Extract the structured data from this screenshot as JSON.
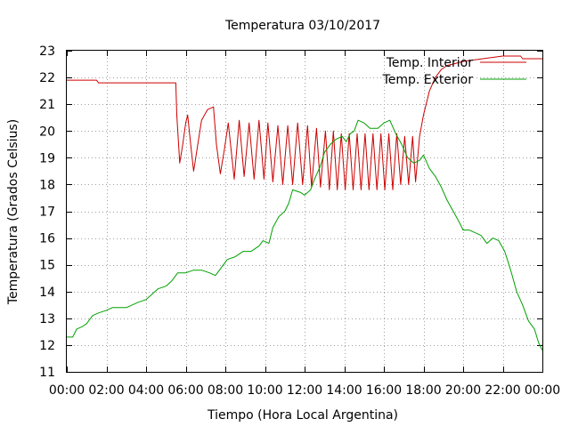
{
  "chart_data": {
    "type": "line",
    "title": "Temperatura 03/10/2017",
    "xlabel": "Tiempo (Hora Local Argentina)",
    "ylabel": "Temperatura (Grados Celsius)",
    "xlim": [
      0,
      24
    ],
    "ylim": [
      11,
      23
    ],
    "x_tick_labels": [
      "00:00",
      "02:00",
      "04:00",
      "06:00",
      "08:00",
      "10:00",
      "12:00",
      "14:00",
      "16:00",
      "18:00",
      "20:00",
      "22:00",
      "00:00"
    ],
    "y_tick_labels": [
      "11",
      "12",
      "13",
      "14",
      "15",
      "16",
      "17",
      "18",
      "19",
      "20",
      "21",
      "22",
      "23"
    ],
    "grid": true,
    "legend_position": "top-right",
    "series": [
      {
        "name": "Temp. Interior",
        "color": "#cc0000",
        "points": [
          [
            0,
            21.9
          ],
          [
            1.5,
            21.9
          ],
          [
            1.6,
            21.8
          ],
          [
            5.5,
            21.8
          ],
          [
            5.55,
            20.6
          ],
          [
            5.7,
            18.8
          ],
          [
            5.85,
            19.5
          ],
          [
            6.0,
            20.3
          ],
          [
            6.1,
            20.6
          ],
          [
            6.25,
            19.5
          ],
          [
            6.4,
            18.5
          ],
          [
            6.55,
            19.2
          ],
          [
            6.8,
            20.4
          ],
          [
            7.1,
            20.8
          ],
          [
            7.4,
            20.9
          ],
          [
            7.55,
            19.5
          ],
          [
            7.75,
            18.4
          ],
          [
            7.95,
            19.3
          ],
          [
            8.15,
            20.3
          ],
          [
            8.45,
            18.2
          ],
          [
            8.7,
            20.4
          ],
          [
            8.95,
            18.3
          ],
          [
            9.2,
            20.3
          ],
          [
            9.45,
            18.2
          ],
          [
            9.7,
            20.4
          ],
          [
            9.95,
            18.2
          ],
          [
            10.15,
            20.3
          ],
          [
            10.4,
            18.1
          ],
          [
            10.65,
            20.2
          ],
          [
            10.9,
            18.0
          ],
          [
            11.15,
            20.2
          ],
          [
            11.4,
            18.0
          ],
          [
            11.65,
            20.3
          ],
          [
            11.9,
            18.0
          ],
          [
            12.15,
            20.2
          ],
          [
            12.35,
            17.9
          ],
          [
            12.6,
            20.1
          ],
          [
            12.8,
            17.9
          ],
          [
            13.05,
            20.0
          ],
          [
            13.25,
            17.8
          ],
          [
            13.45,
            20.0
          ],
          [
            13.65,
            17.8
          ],
          [
            13.85,
            19.9
          ],
          [
            14.05,
            17.8
          ],
          [
            14.25,
            19.9
          ],
          [
            14.45,
            17.8
          ],
          [
            14.65,
            19.9
          ],
          [
            14.85,
            17.8
          ],
          [
            15.05,
            19.9
          ],
          [
            15.25,
            17.8
          ],
          [
            15.45,
            19.9
          ],
          [
            15.65,
            17.8
          ],
          [
            15.85,
            19.9
          ],
          [
            16.05,
            17.8
          ],
          [
            16.25,
            19.9
          ],
          [
            16.45,
            17.8
          ],
          [
            16.65,
            19.9
          ],
          [
            16.85,
            18.0
          ],
          [
            17.05,
            19.8
          ],
          [
            17.25,
            18.0
          ],
          [
            17.45,
            19.8
          ],
          [
            17.6,
            18.1
          ],
          [
            17.8,
            19.8
          ],
          [
            18.0,
            20.6
          ],
          [
            18.3,
            21.5
          ],
          [
            18.6,
            22.0
          ],
          [
            18.9,
            22.3
          ],
          [
            19.2,
            22.45
          ],
          [
            19.5,
            22.5
          ],
          [
            20.0,
            22.6
          ],
          [
            20.5,
            22.65
          ],
          [
            21.0,
            22.7
          ],
          [
            21.5,
            22.75
          ],
          [
            22.0,
            22.8
          ],
          [
            22.9,
            22.8
          ],
          [
            23.0,
            22.7
          ],
          [
            24.0,
            22.7
          ]
        ]
      },
      {
        "name": "Temp. Exterior",
        "color": "#00a000",
        "points": [
          [
            0,
            12.3
          ],
          [
            0.3,
            12.3
          ],
          [
            0.5,
            12.6
          ],
          [
            0.8,
            12.7
          ],
          [
            1.0,
            12.8
          ],
          [
            1.3,
            13.1
          ],
          [
            1.6,
            13.2
          ],
          [
            2.0,
            13.3
          ],
          [
            2.3,
            13.4
          ],
          [
            2.7,
            13.4
          ],
          [
            3.0,
            13.4
          ],
          [
            3.3,
            13.5
          ],
          [
            3.6,
            13.6
          ],
          [
            4.0,
            13.7
          ],
          [
            4.3,
            13.9
          ],
          [
            4.6,
            14.1
          ],
          [
            5.0,
            14.2
          ],
          [
            5.3,
            14.4
          ],
          [
            5.6,
            14.7
          ],
          [
            6.0,
            14.7
          ],
          [
            6.4,
            14.8
          ],
          [
            6.8,
            14.8
          ],
          [
            7.2,
            14.7
          ],
          [
            7.5,
            14.6
          ],
          [
            7.8,
            14.9
          ],
          [
            8.1,
            15.2
          ],
          [
            8.5,
            15.3
          ],
          [
            8.9,
            15.5
          ],
          [
            9.3,
            15.5
          ],
          [
            9.7,
            15.7
          ],
          [
            9.9,
            15.9
          ],
          [
            10.2,
            15.8
          ],
          [
            10.4,
            16.4
          ],
          [
            10.7,
            16.8
          ],
          [
            11.0,
            17.0
          ],
          [
            11.2,
            17.3
          ],
          [
            11.4,
            17.8
          ],
          [
            11.8,
            17.7
          ],
          [
            12.0,
            17.6
          ],
          [
            12.3,
            17.8
          ],
          [
            12.5,
            18.2
          ],
          [
            12.8,
            18.7
          ],
          [
            13.0,
            19.2
          ],
          [
            13.3,
            19.5
          ],
          [
            13.6,
            19.7
          ],
          [
            13.9,
            19.8
          ],
          [
            14.1,
            19.6
          ],
          [
            14.3,
            19.9
          ],
          [
            14.5,
            20.0
          ],
          [
            14.7,
            20.4
          ],
          [
            15.0,
            20.3
          ],
          [
            15.3,
            20.1
          ],
          [
            15.7,
            20.1
          ],
          [
            16.0,
            20.3
          ],
          [
            16.3,
            20.4
          ],
          [
            16.6,
            19.9
          ],
          [
            16.9,
            19.5
          ],
          [
            17.2,
            19.0
          ],
          [
            17.5,
            18.8
          ],
          [
            17.8,
            18.9
          ],
          [
            18.0,
            19.1
          ],
          [
            18.3,
            18.6
          ],
          [
            18.6,
            18.3
          ],
          [
            18.9,
            17.9
          ],
          [
            19.2,
            17.4
          ],
          [
            19.5,
            17.0
          ],
          [
            19.8,
            16.6
          ],
          [
            20.0,
            16.3
          ],
          [
            20.3,
            16.3
          ],
          [
            20.6,
            16.2
          ],
          [
            20.9,
            16.1
          ],
          [
            21.2,
            15.8
          ],
          [
            21.5,
            16.0
          ],
          [
            21.8,
            15.9
          ],
          [
            22.1,
            15.5
          ],
          [
            22.4,
            14.8
          ],
          [
            22.7,
            14.0
          ],
          [
            23.0,
            13.5
          ],
          [
            23.3,
            12.9
          ],
          [
            23.6,
            12.6
          ],
          [
            23.8,
            12.1
          ],
          [
            24.0,
            11.8
          ]
        ]
      }
    ]
  }
}
